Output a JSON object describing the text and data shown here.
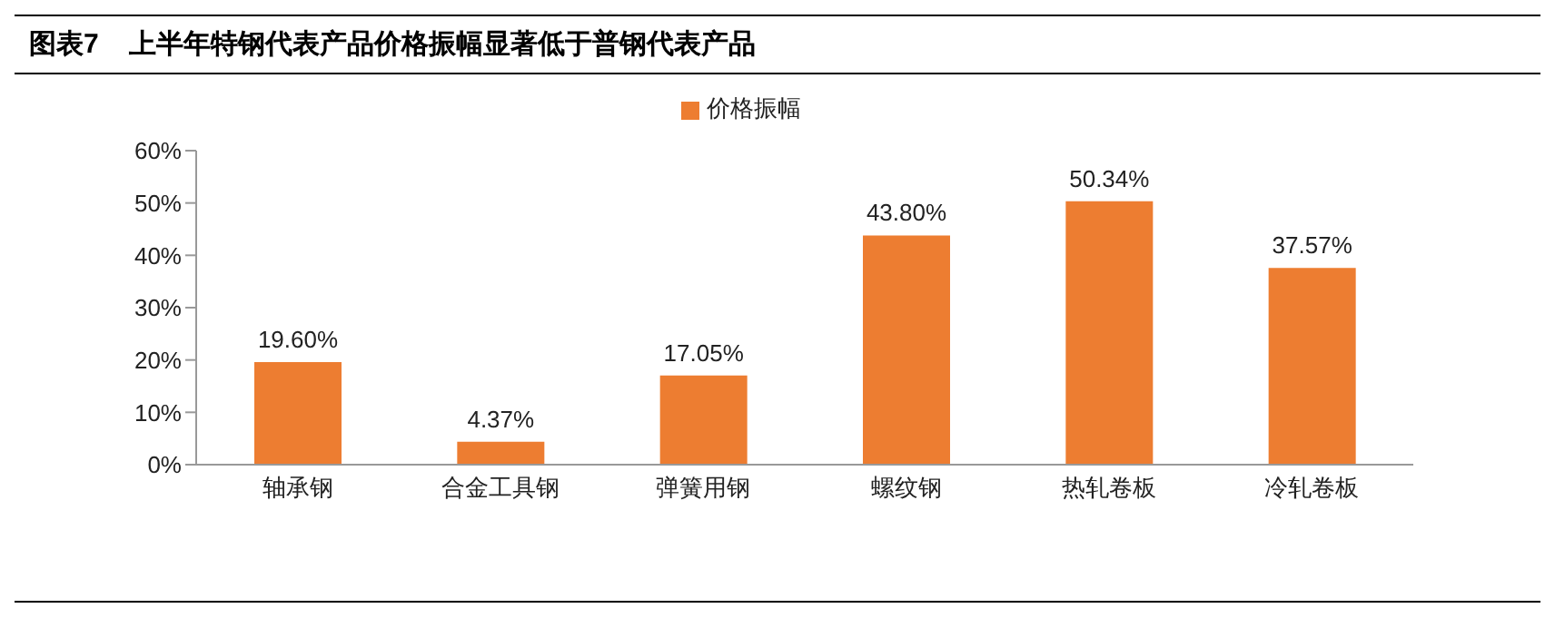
{
  "chart_data": {
    "type": "bar",
    "title": "图表7    上半年特钢代表产品价格振幅显著低于普钢代表产品",
    "categories": [
      "轴承钢",
      "合金工具钢",
      "弹簧用钢",
      "螺纹钢",
      "热轧卷板",
      "冷轧卷板"
    ],
    "series": [
      {
        "name": "价格振幅",
        "color": "#ed7d31",
        "values": [
          19.6,
          4.37,
          17.05,
          43.8,
          50.34,
          37.57
        ],
        "value_labels": [
          "19.60%",
          "4.37%",
          "17.05%",
          "43.80%",
          "50.34%",
          "37.57%"
        ]
      }
    ],
    "ylim": [
      0,
      60
    ],
    "yticks": [
      {
        "value": 0,
        "label": "0%"
      },
      {
        "value": 10,
        "label": "10%"
      },
      {
        "value": 20,
        "label": "20%"
      },
      {
        "value": 30,
        "label": "30%"
      },
      {
        "value": 40,
        "label": "40%"
      },
      {
        "value": 50,
        "label": "50%"
      },
      {
        "value": 60,
        "label": "60%"
      }
    ],
    "legend": "top"
  }
}
